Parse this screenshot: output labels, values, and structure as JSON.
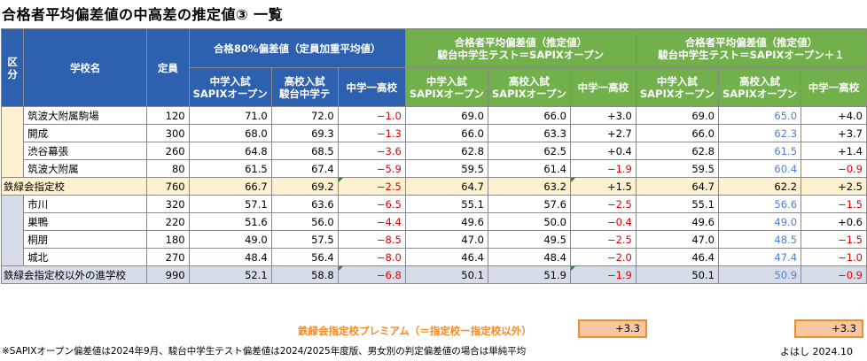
{
  "title": "合格者平均偏差値の中高差の推定値③ 一覧",
  "headers": {
    "kubun": "区分",
    "school": "学校名",
    "teiin": "定員",
    "group1": "合格80%偏差値（定員加重平均値）",
    "group2_line1": "合格者平均偏差値（推定値）",
    "group2_line2": "駿台中学生テスト＝SAPIXオープン",
    "group3_line1": "合格者平均偏差値（推定値）",
    "group3_line2": "駿台中学生テスト＝SAPIXオープン＋１",
    "sub_chu_line1": "中学入試",
    "sub_chu_line2": "SAPIXオープン",
    "sub_ko_line1": "高校入試",
    "sub_ko_line2": "駿台中学テ",
    "sub_ko2_line2": "SAPIXオープン",
    "sub_diff": "中学一高校"
  },
  "rows": [
    {
      "name": "筑波大附属駒場",
      "teiin": "120",
      "g1a": "71.0",
      "g1b": "72.0",
      "g1d": "−1.0",
      "g2a": "69.0",
      "g2b": "66.0",
      "g2d": "+3.0",
      "g3a": "69.0",
      "g3b": "65.0",
      "g3d": "+4.0"
    },
    {
      "name": "開成",
      "teiin": "300",
      "g1a": "68.0",
      "g1b": "69.3",
      "g1d": "−1.3",
      "g2a": "66.0",
      "g2b": "63.3",
      "g2d": "+2.7",
      "g3a": "66.0",
      "g3b": "62.3",
      "g3d": "+3.7"
    },
    {
      "name": "渋谷幕張",
      "teiin": "260",
      "g1a": "64.8",
      "g1b": "68.5",
      "g1d": "−3.6",
      "g2a": "62.8",
      "g2b": "62.5",
      "g2d": "+0.4",
      "g3a": "62.8",
      "g3b": "61.5",
      "g3d": "+1.4"
    },
    {
      "name": "筑波大附属",
      "teiin": "80",
      "g1a": "61.5",
      "g1b": "67.4",
      "g1d": "−5.9",
      "g2a": "59.5",
      "g2b": "61.4",
      "g2d": "−1.9",
      "g3a": "59.5",
      "g3b": "60.4",
      "g3d": "−0.9"
    },
    {
      "name": "鉄緑会指定校",
      "teiin": "760",
      "g1a": "66.7",
      "g1b": "69.2",
      "g1d": "−2.5",
      "g2a": "64.7",
      "g2b": "63.2",
      "g2d": "+1.5",
      "g3a": "64.7",
      "g3b": "62.2",
      "g3d": "+2.5"
    },
    {
      "name": "市川",
      "teiin": "320",
      "g1a": "57.1",
      "g1b": "63.6",
      "g1d": "−6.5",
      "g2a": "55.1",
      "g2b": "57.6",
      "g2d": "−2.5",
      "g3a": "55.1",
      "g3b": "56.6",
      "g3d": "−1.5"
    },
    {
      "name": "巣鴨",
      "teiin": "220",
      "g1a": "51.6",
      "g1b": "56.0",
      "g1d": "−4.4",
      "g2a": "49.6",
      "g2b": "50.0",
      "g2d": "−0.4",
      "g3a": "49.6",
      "g3b": "49.0",
      "g3d": "+0.6"
    },
    {
      "name": "桐朋",
      "teiin": "180",
      "g1a": "49.0",
      "g1b": "57.5",
      "g1d": "−8.5",
      "g2a": "47.0",
      "g2b": "49.5",
      "g2d": "−2.5",
      "g3a": "47.0",
      "g3b": "48.5",
      "g3d": "−1.5"
    },
    {
      "name": "城北",
      "teiin": "270",
      "g1a": "48.4",
      "g1b": "56.4",
      "g1d": "−8.0",
      "g2a": "46.4",
      "g2b": "48.4",
      "g2d": "−2.0",
      "g3a": "46.4",
      "g3b": "47.4",
      "g3d": "−1.0"
    },
    {
      "name": "鉄緑会指定校以外の進学校",
      "teiin": "990",
      "g1a": "52.1",
      "g1b": "58.8",
      "g1d": "−6.8",
      "g2a": "50.1",
      "g2b": "51.9",
      "g2d": "−1.9",
      "g3a": "50.1",
      "g3b": "50.9",
      "g3d": "−0.9"
    }
  ],
  "premium": {
    "label": "鉄緑会指定校プレミアム（＝指定校ー指定校以外）",
    "value2": "+3.3",
    "value3": "+3.3"
  },
  "footnote": "※SAPIXオープン偏差値は2024年9月、駿台中学生テスト偏差値は2024/2025年度版、男女別の判定偏差値の場合は単純平均",
  "signature": "よはし 2024.10",
  "colors": {
    "header_blue": "#2e60b0",
    "header_green": "#71b04b",
    "negative_red": "#e00000",
    "adjusted_blue": "#4f7fd1",
    "premium_orange": "#f28c28"
  }
}
